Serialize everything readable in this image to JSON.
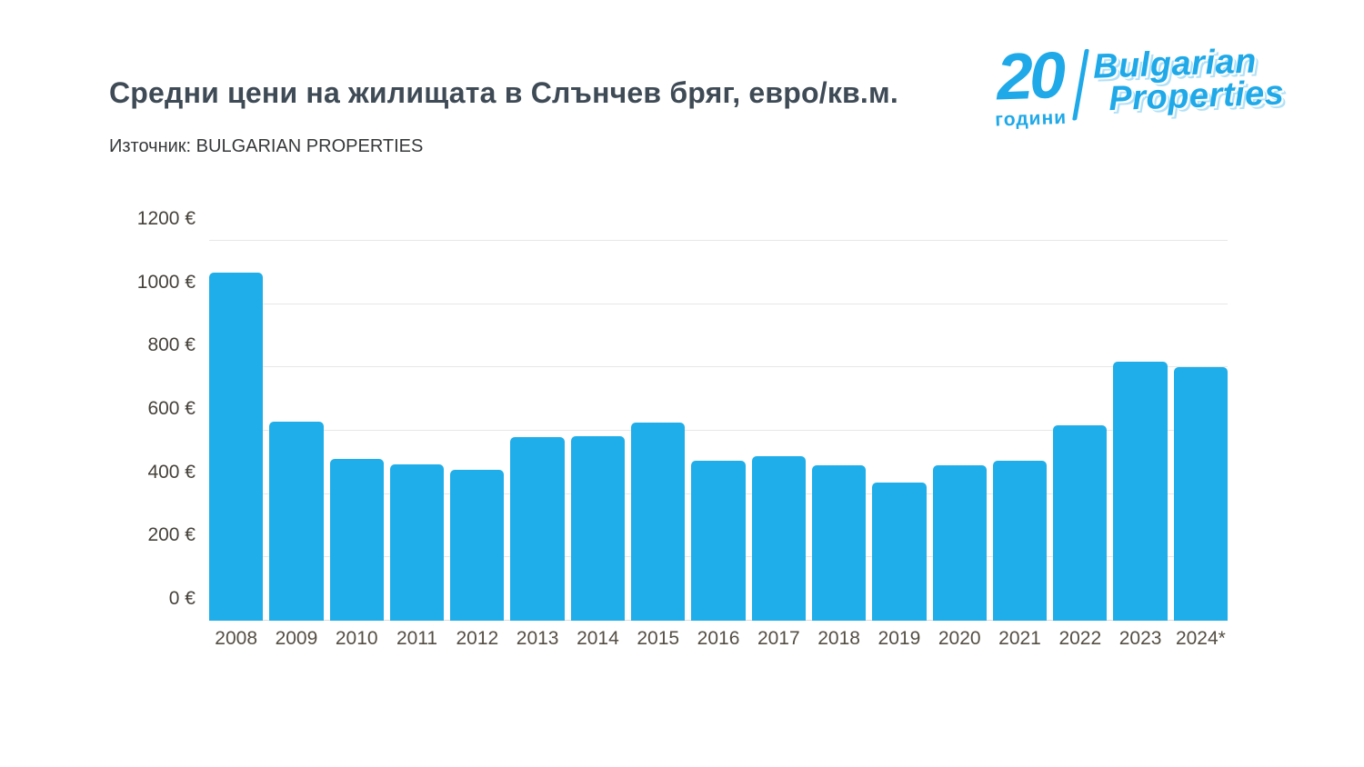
{
  "header": {
    "title": "Средни цени на жилищата в Слънчев бряг, евро/кв.м.",
    "source": "Източник: BULGARIAN PROPERTIES"
  },
  "logo": {
    "years_number": "20",
    "years_word": "години",
    "brand_line1": "Bulgarian",
    "brand_line2": "Properties",
    "color": "#1fa9e8"
  },
  "chart_data": {
    "type": "bar",
    "title": "Средни цени на жилищата в Слънчев бряг, евро/кв.м.",
    "source": "Източник: BULGARIAN PROPERTIES",
    "categories": [
      "2008",
      "2009",
      "2010",
      "2011",
      "2012",
      "2013",
      "2014",
      "2015",
      "2016",
      "2017",
      "2018",
      "2019",
      "2020",
      "2021",
      "2022",
      "2023",
      "2024*"
    ],
    "values": [
      1100,
      630,
      510,
      495,
      478,
      580,
      582,
      625,
      505,
      520,
      490,
      435,
      490,
      505,
      618,
      818,
      800
    ],
    "xlabel": "",
    "ylabel": "евро/кв.м.",
    "ylim": [
      0,
      1200
    ],
    "grid": true,
    "legend": "none",
    "bar_color": "#1faee9",
    "y_ticks": [
      {
        "value": 0,
        "label": "0 €"
      },
      {
        "value": 200,
        "label": "200 €"
      },
      {
        "value": 400,
        "label": "400 €"
      },
      {
        "value": 600,
        "label": "600 €"
      },
      {
        "value": 800,
        "label": "800 €"
      },
      {
        "value": 1000,
        "label": "1000 €"
      },
      {
        "value": 1200,
        "label": "1200 €"
      }
    ]
  }
}
